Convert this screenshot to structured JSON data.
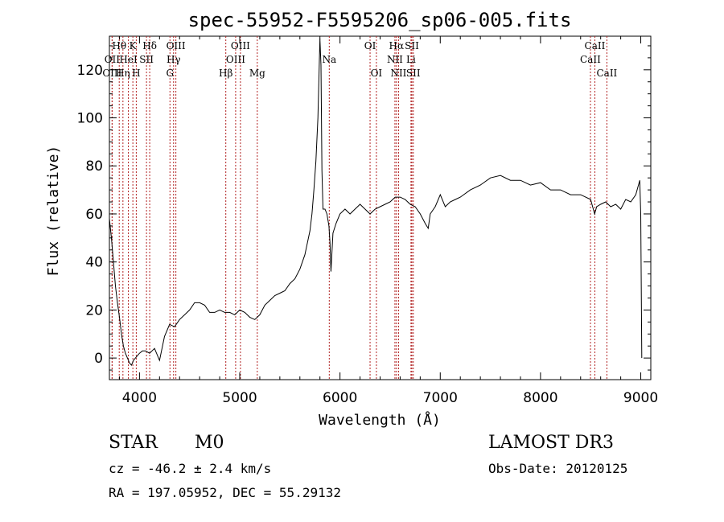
{
  "chart_data": {
    "type": "line",
    "title": "spec-55952-F5595206_sp06-005.fits",
    "xlabel": "Wavelength (Å)",
    "ylabel": "Flux (relative)",
    "xlim": [
      3700,
      9100
    ],
    "ylim": [
      -9,
      134
    ],
    "xticks": [
      4000,
      5000,
      6000,
      7000,
      8000,
      9000
    ],
    "yticks": [
      0,
      20,
      40,
      60,
      80,
      100,
      120
    ],
    "grid": false,
    "series": [
      {
        "x": [
          3700,
          3720,
          3740,
          3760,
          3780,
          3800,
          3820,
          3840,
          3860,
          3880,
          3900,
          3920,
          3940,
          3960,
          3980,
          4000,
          4030,
          4060,
          4100,
          4150,
          4200,
          4250,
          4300,
          4350,
          4400,
          4450,
          4500,
          4550,
          4600,
          4650,
          4700,
          4750,
          4800,
          4850,
          4900,
          4950,
          5000,
          5050,
          5100,
          5150,
          5200,
          5250,
          5300,
          5350,
          5400,
          5450,
          5500,
          5550,
          5600,
          5650,
          5700,
          5720,
          5740,
          5760,
          5780,
          5800,
          5810,
          5820,
          5830,
          5850,
          5870,
          5890,
          5900,
          5910,
          5930,
          5960,
          6000,
          6050,
          6100,
          6150,
          6200,
          6250,
          6300,
          6350,
          6400,
          6450,
          6500,
          6550,
          6600,
          6650,
          6700,
          6750,
          6800,
          6850,
          6880,
          6900,
          6950,
          7000,
          7050,
          7100,
          7150,
          7200,
          7300,
          7400,
          7500,
          7600,
          7700,
          7800,
          7900,
          8000,
          8100,
          8200,
          8300,
          8400,
          8500,
          8540,
          8560,
          8600,
          8650,
          8700,
          8750,
          8800,
          8850,
          8900,
          8950,
          8990,
          9000,
          9010
        ],
        "y": [
          58,
          50,
          40,
          30,
          23,
          17,
          10,
          5,
          2,
          0,
          -2,
          -3,
          -1,
          0,
          1,
          2,
          3,
          3,
          2,
          4,
          -1,
          9,
          14,
          13,
          16,
          18,
          20,
          23,
          23,
          22,
          19,
          19,
          20,
          19,
          19,
          18,
          20,
          19,
          17,
          16,
          18,
          22,
          24,
          26,
          27,
          28,
          31,
          33,
          37,
          43,
          53,
          60,
          70,
          82,
          100,
          133,
          122,
          78,
          62,
          62,
          60,
          55,
          48,
          36,
          52,
          56,
          60,
          62,
          60,
          62,
          64,
          62,
          60,
          62,
          63,
          64,
          65,
          67,
          67,
          66,
          64,
          63,
          60,
          56,
          54,
          60,
          63,
          68,
          63,
          65,
          66,
          67,
          70,
          72,
          75,
          76,
          74,
          74,
          72,
          73,
          70,
          70,
          68,
          68,
          66,
          60,
          63,
          64,
          65,
          63,
          64,
          62,
          66,
          65,
          68,
          74,
          60,
          0
        ]
      }
    ],
    "spectral_lines": [
      {
        "label": "Hθ",
        "x": 3798,
        "row": 1
      },
      {
        "label": "OII",
        "x": 3727,
        "row": 2
      },
      {
        "label": "OIII",
        "x": 3727,
        "row": 3
      },
      {
        "label": "K",
        "x": 3934,
        "row": 1
      },
      {
        "label": "HeI",
        "x": 3889,
        "row": 2
      },
      {
        "label": "Hη",
        "x": 3835,
        "row": 3
      },
      {
        "label": "SII",
        "x": 4070,
        "row": 2
      },
      {
        "label": "H",
        "x": 3968,
        "row": 3
      },
      {
        "label": "Hδ",
        "x": 4102,
        "row": 1
      },
      {
        "label": "OIII",
        "x": 4363,
        "row": 1
      },
      {
        "label": "Hγ",
        "x": 4340,
        "row": 2
      },
      {
        "label": "G",
        "x": 4304,
        "row": 3
      },
      {
        "label": "OIII",
        "x": 5007,
        "row": 1
      },
      {
        "label": "OIII",
        "x": 4959,
        "row": 2
      },
      {
        "label": "Hβ",
        "x": 4861,
        "row": 3
      },
      {
        "label": "Mg",
        "x": 5175,
        "row": 3
      },
      {
        "label": "Na",
        "x": 5893,
        "row": 2
      },
      {
        "label": "OI",
        "x": 6300,
        "row": 1
      },
      {
        "label": "OI",
        "x": 6363,
        "row": 3
      },
      {
        "label": "Hα",
        "x": 6563,
        "row": 1
      },
      {
        "label": "SII",
        "x": 6717,
        "row": 1
      },
      {
        "label": "NII",
        "x": 6548,
        "row": 2
      },
      {
        "label": "Li",
        "x": 6708,
        "row": 2
      },
      {
        "label": "NII",
        "x": 6584,
        "row": 3
      },
      {
        "label": "SII",
        "x": 6731,
        "row": 3
      },
      {
        "label": "CaII",
        "x": 8542,
        "row": 1
      },
      {
        "label": "CaII",
        "x": 8498,
        "row": 2
      },
      {
        "label": "CaII",
        "x": 8662,
        "row": 3
      }
    ]
  },
  "info": {
    "object_class": "STAR",
    "subclass": "M0",
    "survey": "LAMOST DR3",
    "cz": "cz = -46.2 ± 2.4 km/s",
    "obs_date": "Obs-Date: 20120125",
    "coords": "RA = 197.05952, DEC =  55.29132"
  }
}
